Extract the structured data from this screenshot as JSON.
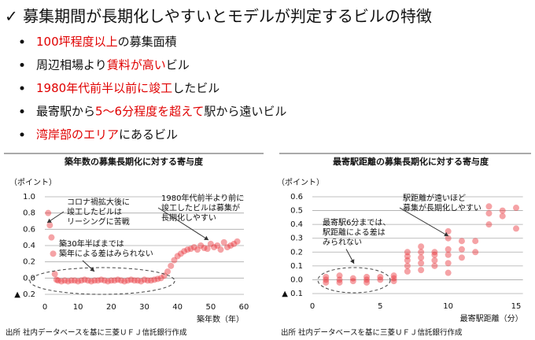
{
  "header": {
    "title": "✓ 募集期間が長期化しやすいとモデルが判定するビルの特徴"
  },
  "bullets": [
    [
      {
        "text": "100坪程度以上",
        "color": "#e00000"
      },
      {
        "text": "の募集面積"
      }
    ],
    [
      {
        "text": "周辺相場より"
      },
      {
        "text": "賃料が高い",
        "color": "#e00000"
      },
      {
        "text": "ビル"
      }
    ],
    [
      {
        "text": "1980年代前半以前に竣工",
        "color": "#e00000"
      },
      {
        "text": "したビル"
      }
    ],
    [
      {
        "text": "最寄駅から"
      },
      {
        "text": "5～6分程度を超えて",
        "color": "#e00000"
      },
      {
        "text": "駅から遠いビル"
      }
    ],
    [
      {
        "text": "湾岸部のエリア",
        "color": "#e00000"
      },
      {
        "text": "にあるビル"
      }
    ]
  ],
  "chart_data": [
    {
      "type": "scatter",
      "title": "築年数の募集長期化に対する寄与度",
      "y_label": "（ポイント）",
      "x_label": "築年数（年）",
      "xlim": [
        0,
        60
      ],
      "xticks": [
        0,
        10,
        20,
        30,
        40,
        50,
        60
      ],
      "ylim": [
        -0.2,
        1.0
      ],
      "yticks": [
        {
          "value": -0.2,
          "label": "▲ 0.2"
        },
        {
          "value": 0,
          "label": "0.0"
        },
        0.2,
        0.4,
        0.6,
        0.8,
        {
          "value": 1.0,
          "label": "1.0"
        }
      ],
      "grid": true,
      "series": [
        {
          "color": "#e8333a",
          "x": [
            1,
            1.5,
            2,
            2.5,
            3,
            3.5,
            4,
            5,
            6,
            7,
            8,
            9,
            10,
            11,
            12,
            13,
            14,
            15,
            16,
            17,
            18,
            19,
            20,
            21,
            22,
            23,
            24,
            25,
            26,
            27,
            28,
            29,
            30,
            31,
            32,
            33,
            34,
            35,
            36,
            37,
            38,
            39,
            40,
            41,
            42,
            43,
            44,
            45,
            46,
            47,
            48,
            49,
            50,
            51,
            52,
            53,
            54,
            55,
            56,
            57,
            58
          ],
          "values": [
            0.8,
            0.65,
            0.5,
            0.3,
            0.05,
            -0.02,
            -0.03,
            -0.04,
            -0.03,
            -0.04,
            -0.03,
            -0.03,
            -0.04,
            -0.03,
            -0.02,
            -0.03,
            -0.04,
            -0.03,
            -0.03,
            -0.02,
            -0.03,
            -0.04,
            -0.03,
            -0.03,
            -0.02,
            -0.03,
            -0.04,
            -0.03,
            -0.02,
            -0.03,
            -0.03,
            -0.04,
            -0.02,
            -0.03,
            -0.03,
            -0.02,
            -0.01,
            0.0,
            0.03,
            0.08,
            0.15,
            0.22,
            0.27,
            0.3,
            0.33,
            0.35,
            0.36,
            0.38,
            0.35,
            0.4,
            0.37,
            0.36,
            0.42,
            0.38,
            0.4,
            0.35,
            0.44,
            0.38,
            0.4,
            0.42,
            0.45
          ]
        }
      ],
      "annotations": [
        [
          "コロナ禍拡大後に",
          "竣工したビルは",
          "リーシングに苦戦"
        ],
        [
          "築30年半ばまでは",
          "築年による差はみられない"
        ],
        [
          "1980年代前半より前に",
          "竣工したビルは募集が",
          "長期化しやすい"
        ]
      ],
      "source": "出所 社内データベースを基に三菱ＵＦＪ信託銀行作成"
    },
    {
      "type": "scatter",
      "title": "最寄駅距離の募集長期化に対する寄与度",
      "y_label": "（ポイント）",
      "x_label": "最寄駅距離（分）",
      "xlim": [
        0,
        15.5
      ],
      "xticks": [
        0,
        5,
        10,
        15
      ],
      "ylim": [
        -0.1,
        0.6
      ],
      "yticks": [
        {
          "value": -0.1,
          "label": "▲ 0.1"
        },
        {
          "value": 0,
          "label": "0.0"
        },
        0.1,
        0.2,
        0.3,
        0.4,
        0.5,
        0.6
      ],
      "grid": true,
      "series": [
        {
          "color": "#e8333a",
          "x": [
            1,
            1,
            1,
            2,
            2,
            2,
            3,
            3,
            4,
            4,
            4,
            5,
            5,
            6,
            6,
            6,
            7,
            7,
            7,
            7,
            7,
            8,
            8,
            8,
            8,
            8,
            9,
            9,
            9,
            9,
            10,
            10,
            10,
            10,
            10,
            10,
            11,
            11,
            11,
            12,
            12,
            13,
            13,
            13,
            14,
            14,
            15,
            15
          ],
          "values": [
            0.0,
            -0.02,
            0.02,
            0.0,
            -0.02,
            0.03,
            -0.01,
            0.01,
            0.0,
            -0.02,
            0.02,
            0.0,
            0.02,
            -0.01,
            0.01,
            0.03,
            0.06,
            0.1,
            0.14,
            0.17,
            0.2,
            0.07,
            0.12,
            0.16,
            0.2,
            0.24,
            0.1,
            0.14,
            0.18,
            0.2,
            0.05,
            0.12,
            0.18,
            0.22,
            0.3,
            0.35,
            0.16,
            0.22,
            0.28,
            0.2,
            0.28,
            0.4,
            0.48,
            0.53,
            0.46,
            0.5,
            0.37,
            0.52
          ]
        }
      ],
      "annotations": [
        [
          "駅距離が遠いほど",
          "募集が長期化しやすい"
        ],
        [
          "最寄駅6分までは、",
          "駅距離による差は",
          "みられない"
        ]
      ],
      "source": "出所 社内データベースを基に三菱ＵＦＪ信託銀行作成"
    }
  ]
}
